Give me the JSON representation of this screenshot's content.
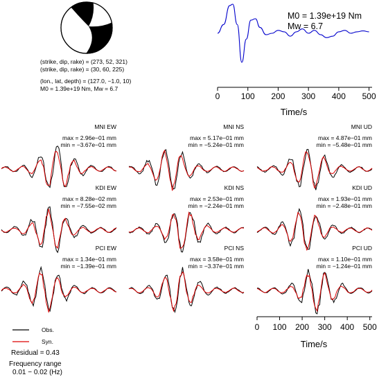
{
  "source_params": {
    "line1": "(strike, dip, rake) = (273, 52, 321)",
    "line2": "(strike, dip, rake) = (30, 60, 225)",
    "line3": "(lon., lat, depth) = (127.0, −1.0, 10)",
    "line4": "M0 = 1.39e+19 Nm, Mw = 6.7"
  },
  "stf": {
    "m0_label": "M0 = 1.39e+19 Nm",
    "mw_label": "Mw = 6.7",
    "xlabel": "Time/s",
    "xticks": [
      "0",
      "100",
      "200",
      "300",
      "400",
      "500"
    ],
    "color": "#0000cc"
  },
  "panels": [
    {
      "id": "mni-ew",
      "title": "MNI EW",
      "max": "max = 2.96e−01 mm",
      "min": "min = −3.67e−01 mm"
    },
    {
      "id": "mni-ns",
      "title": "MNI NS",
      "max": "max = 5.17e−01 mm",
      "min": "min = −5.24e−01 mm"
    },
    {
      "id": "mni-ud",
      "title": "MNI UD",
      "max": "max = 4.87e−01 mm",
      "min": "min = −5.48e−01 mm"
    },
    {
      "id": "kdi-ew",
      "title": "KDI EW",
      "max": "max = 8.28e−02 mm",
      "min": "min = −7.55e−02 mm"
    },
    {
      "id": "kdi-ns",
      "title": "KDI NS",
      "max": "max = 2.53e−01 mm",
      "min": "min = −2.24e−01 mm"
    },
    {
      "id": "kdi-ud",
      "title": "KDI UD",
      "max": "max = 1.93e−01 mm",
      "min": "min = −2.48e−01 mm"
    },
    {
      "id": "pci-ew",
      "title": "PCI EW",
      "max": "max = 1.34e−01 mm",
      "min": "min = −1.39e−01 mm"
    },
    {
      "id": "pci-ns",
      "title": "PCI NS",
      "max": "max = 3.58e−01 mm",
      "min": "min = −3.37e−01 mm"
    },
    {
      "id": "pci-ud",
      "title": "PCI UD",
      "max": "max = 1.10e−01 mm",
      "min": "min = −1.24e−01 mm"
    }
  ],
  "wave_axis": {
    "xlabel": "Time/s",
    "xticks": [
      "0",
      "100",
      "200",
      "300",
      "400",
      "500"
    ]
  },
  "legend": {
    "obs_label": "Obs.",
    "syn_label": "Syn.",
    "obs_color": "#000000",
    "syn_color": "#dd0000"
  },
  "summary": {
    "residual": "Residual = 0.43",
    "freq_title": "Frequency range",
    "freq_value": "0.01 − 0.02 (Hz)"
  },
  "chart_data": [
    {
      "type": "line",
      "title": "",
      "xlabel": "Time/s",
      "ylabel": "",
      "xlim": [
        0,
        510
      ],
      "series": [
        {
          "values_t": [
            0,
            20,
            40,
            50,
            65,
            80,
            95,
            110,
            125,
            140,
            160,
            180,
            200,
            220,
            240,
            260,
            280,
            300,
            320,
            340,
            360,
            380,
            400,
            420,
            440,
            460,
            480,
            500
          ],
          "values_a": [
            0.0,
            0.3,
            0.95,
            1.0,
            0.3,
            -1.0,
            -0.2,
            0.45,
            0.5,
            0.2,
            -0.05,
            0.0,
            0.1,
            0.05,
            -0.1,
            0.05,
            0.15,
            0.0,
            0.1,
            -0.05,
            -0.15,
            -0.1,
            0.05,
            0.1,
            0.0,
            0.05,
            0.08,
            0.05
          ]
        }
      ]
    },
    {
      "type": "line",
      "title": "MNI EW",
      "ylim": [
        -0.367,
        0.296
      ],
      "series": [
        {
          "name": "Obs."
        },
        {
          "name": "Syn."
        }
      ]
    },
    {
      "type": "line",
      "title": "MNI NS",
      "ylim": [
        -0.524,
        0.517
      ],
      "series": [
        {
          "name": "Obs."
        },
        {
          "name": "Syn."
        }
      ]
    },
    {
      "type": "line",
      "title": "MNI UD",
      "ylim": [
        -0.548,
        0.487
      ],
      "series": [
        {
          "name": "Obs."
        },
        {
          "name": "Syn."
        }
      ]
    },
    {
      "type": "line",
      "title": "KDI EW",
      "ylim": [
        -0.0755,
        0.0828
      ],
      "series": [
        {
          "name": "Obs."
        },
        {
          "name": "Syn."
        }
      ]
    },
    {
      "type": "line",
      "title": "KDI NS",
      "ylim": [
        -0.224,
        0.253
      ],
      "series": [
        {
          "name": "Obs."
        },
        {
          "name": "Syn."
        }
      ]
    },
    {
      "type": "line",
      "title": "KDI UD",
      "ylim": [
        -0.248,
        0.193
      ],
      "series": [
        {
          "name": "Obs."
        },
        {
          "name": "Syn."
        }
      ]
    },
    {
      "type": "line",
      "title": "PCI EW",
      "ylim": [
        -0.139,
        0.134
      ],
      "series": [
        {
          "name": "Obs."
        },
        {
          "name": "Syn."
        }
      ]
    },
    {
      "type": "line",
      "title": "PCI NS",
      "ylim": [
        -0.337,
        0.358
      ],
      "series": [
        {
          "name": "Obs."
        },
        {
          "name": "Syn."
        }
      ]
    },
    {
      "type": "line",
      "title": "PCI UD",
      "ylim": [
        -0.124,
        0.11
      ],
      "series": [
        {
          "name": "Obs."
        },
        {
          "name": "Syn."
        }
      ]
    }
  ]
}
